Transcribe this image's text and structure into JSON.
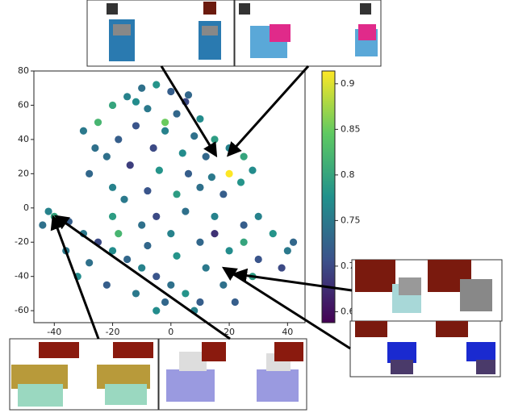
{
  "chart_data": {
    "type": "scatter",
    "colormap": "viridis",
    "xlim": [
      -47,
      46
    ],
    "ylim": [
      -67,
      80
    ],
    "xticks": [
      -40,
      -20,
      0,
      20,
      40
    ],
    "yticks": [
      -60,
      -40,
      -20,
      0,
      20,
      40,
      60,
      80
    ],
    "clim": [
      0.638,
      0.914
    ],
    "cticks": [
      0.65,
      0.7,
      0.75,
      0.8,
      0.85,
      0.9
    ],
    "x": [
      -10,
      -5,
      0,
      -15,
      5,
      -20,
      -8,
      2,
      10,
      -25,
      -12,
      -2,
      8,
      15,
      -18,
      -30,
      -6,
      4,
      12,
      20,
      25,
      -22,
      -14,
      -4,
      6,
      14,
      20,
      28,
      -28,
      -20,
      -8,
      2,
      10,
      -16,
      24,
      -12,
      -2,
      6,
      -26,
      18,
      -44,
      -40,
      -42,
      -35,
      -30,
      -25,
      -20,
      -15,
      -10,
      -5,
      0,
      5,
      10,
      -20,
      -10,
      0,
      10,
      20,
      30,
      40,
      35,
      25,
      15,
      5,
      -5,
      -28,
      -32,
      -22,
      -12,
      -2,
      8,
      18,
      28,
      38,
      22,
      12,
      2,
      -8,
      -18,
      30,
      42,
      -36,
      15,
      25,
      -5
    ],
    "y": [
      70,
      72,
      68,
      65,
      62,
      60,
      58,
      55,
      52,
      50,
      48,
      45,
      42,
      40,
      40,
      45,
      35,
      32,
      30,
      35,
      30,
      30,
      25,
      22,
      20,
      18,
      20,
      22,
      20,
      12,
      10,
      8,
      12,
      5,
      15,
      62,
      50,
      66,
      35,
      8,
      -10,
      -5,
      -2,
      -8,
      -15,
      -20,
      -25,
      -30,
      -35,
      -40,
      -45,
      -50,
      -55,
      -5,
      -10,
      -15,
      -20,
      -25,
      -30,
      -25,
      -15,
      -10,
      -5,
      -2,
      -5,
      -32,
      -40,
      -45,
      -50,
      -55,
      -60,
      -45,
      -40,
      -35,
      -55,
      -35,
      -28,
      -22,
      -15,
      -5,
      -20,
      -25,
      -15,
      -20,
      -60
    ],
    "values": [
      0.74,
      0.78,
      0.72,
      0.76,
      0.7,
      0.8,
      0.75,
      0.73,
      0.77,
      0.82,
      0.71,
      0.76,
      0.74,
      0.79,
      0.72,
      0.75,
      0.7,
      0.77,
      0.73,
      0.76,
      0.8,
      0.74,
      0.69,
      0.78,
      0.72,
      0.75,
      0.92,
      0.77,
      0.73,
      0.76,
      0.71,
      0.79,
      0.74,
      0.75,
      0.78,
      0.77,
      0.85,
      0.73,
      0.74,
      0.72,
      0.74,
      0.8,
      0.76,
      0.72,
      0.75,
      0.7,
      0.77,
      0.73,
      0.76,
      0.71,
      0.74,
      0.78,
      0.72,
      0.79,
      0.74,
      0.76,
      0.73,
      0.77,
      0.71,
      0.75,
      0.78,
      0.72,
      0.76,
      0.74,
      0.7,
      0.74,
      0.77,
      0.72,
      0.75,
      0.73,
      0.76,
      0.74,
      0.79,
      0.7,
      0.72,
      0.75,
      0.78,
      0.73,
      0.82,
      0.76,
      0.73,
      0.75,
      0.68,
      0.8,
      0.77
    ]
  }
}
